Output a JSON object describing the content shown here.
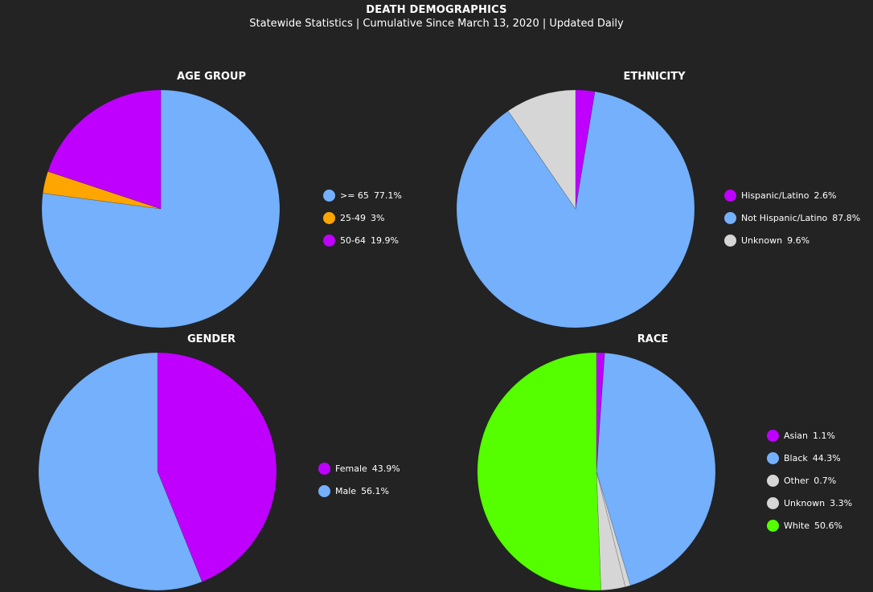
{
  "header": {
    "title": "DEATH DEMOGRAPHICS",
    "subtitle": "Statewide Statistics  |  Cumulative Since March 13, 2020  |  Updated Daily"
  },
  "chart_data": [
    {
      "id": "age",
      "type": "pie",
      "title": "AGE GROUP",
      "legend_position": "right",
      "slices": [
        {
          "label": ">= 65",
          "value": 77.1,
          "display": "77.1%",
          "color": "#74b0fb"
        },
        {
          "label": "25-49",
          "value": 3,
          "display": "3%",
          "color": "#ffa500"
        },
        {
          "label": "50-64",
          "value": 19.9,
          "display": "19.9%",
          "color": "#bf00ff"
        }
      ]
    },
    {
      "id": "ethnicity",
      "type": "pie",
      "title": "ETHNICITY",
      "legend_position": "right",
      "slices": [
        {
          "label": "Hispanic/Latino",
          "value": 2.6,
          "display": "2.6%",
          "color": "#bf00ff"
        },
        {
          "label": "Not Hispanic/Latino",
          "value": 87.8,
          "display": "87.8%",
          "color": "#74b0fb"
        },
        {
          "label": "Unknown",
          "value": 9.6,
          "display": "9.6%",
          "color": "#d6d6d6"
        }
      ]
    },
    {
      "id": "gender",
      "type": "pie",
      "title": "GENDER",
      "legend_position": "right",
      "slices": [
        {
          "label": "Female",
          "value": 43.9,
          "display": "43.9%",
          "color": "#bf00ff"
        },
        {
          "label": "Male",
          "value": 56.1,
          "display": "56.1%",
          "color": "#74b0fb"
        }
      ]
    },
    {
      "id": "race",
      "type": "pie",
      "title": "RACE",
      "legend_position": "right",
      "slices": [
        {
          "label": "Asian",
          "value": 1.1,
          "display": "1.1%",
          "color": "#bf00ff"
        },
        {
          "label": "Black",
          "value": 44.3,
          "display": "44.3%",
          "color": "#74b0fb"
        },
        {
          "label": "Other",
          "value": 0.7,
          "display": "0.7%",
          "color": "#d6d6d6"
        },
        {
          "label": "Unknown",
          "value": 3.3,
          "display": "3.3%",
          "color": "#d6d6d6"
        },
        {
          "label": "White",
          "value": 50.6,
          "display": "50.6%",
          "color": "#55ff00"
        }
      ]
    }
  ]
}
